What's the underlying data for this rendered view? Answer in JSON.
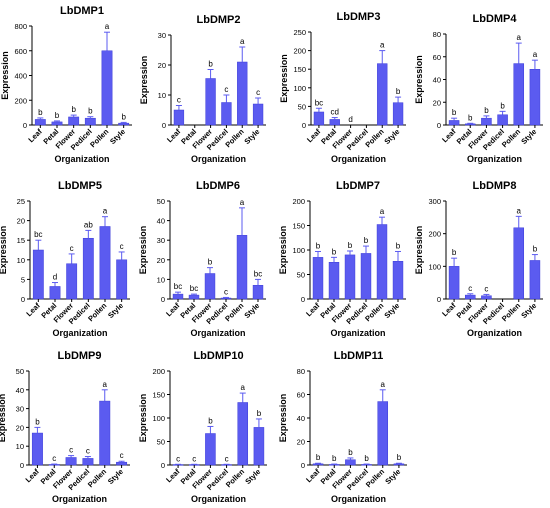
{
  "colors": {
    "bar": "#5b5bf0",
    "bar_stroke": "#3c3cd8",
    "axis": "#000000",
    "text": "#000000"
  },
  "chart_data": [
    {
      "type": "bar",
      "title": "LbDMP1",
      "xlabel": "Organization",
      "ylabel": "Expression",
      "ylim": [
        0,
        800
      ],
      "yticks": [
        0,
        200,
        400,
        600,
        800
      ],
      "categories": [
        "Leaf",
        "Petal",
        "Flower",
        "Pedicel",
        "Pollen",
        "Style"
      ],
      "values": [
        45,
        25,
        65,
        55,
        600,
        15
      ],
      "errors": [
        12,
        8,
        15,
        12,
        150,
        6
      ],
      "labels": [
        "b",
        "b",
        "b",
        "b",
        "a",
        "b"
      ]
    },
    {
      "type": "bar",
      "title": "LbDMP2",
      "xlabel": "Organization",
      "ylabel": "Expression",
      "ylim": [
        0,
        30
      ],
      "yticks": [
        0,
        10,
        20,
        30
      ],
      "categories": [
        "Leaf",
        "Petal",
        "Flower",
        "Pedicel",
        "Pollen",
        "Style"
      ],
      "values": [
        5,
        0,
        15.5,
        7.5,
        21,
        7
      ],
      "errors": [
        1.5,
        0,
        3,
        2.5,
        5,
        2
      ],
      "labels": [
        "c",
        "",
        "b",
        "c",
        "a",
        "c"
      ]
    },
    {
      "type": "bar",
      "title": "LbDMP3",
      "xlabel": "Organization",
      "ylabel": "Expression",
      "ylim": [
        0,
        250
      ],
      "yticks": [
        0,
        50,
        100,
        150,
        200,
        250
      ],
      "categories": [
        "Leaf",
        "Petal",
        "Flower",
        "Pedicel",
        "Pollen",
        "Style"
      ],
      "values": [
        35,
        15,
        0,
        0,
        165,
        60
      ],
      "errors": [
        10,
        5,
        0,
        0,
        35,
        15
      ],
      "labels": [
        "bc",
        "cd",
        "d",
        "",
        "a",
        "b"
      ]
    },
    {
      "type": "bar",
      "title": "LbDMP4",
      "xlabel": "Organization",
      "ylabel": "Expression",
      "ylim": [
        0,
        80
      ],
      "yticks": [
        0,
        20,
        40,
        60,
        80
      ],
      "categories": [
        "Leaf",
        "Petal",
        "Flower",
        "Pedicel",
        "Pollen",
        "Style"
      ],
      "values": [
        4,
        1,
        6,
        9,
        54,
        49
      ],
      "errors": [
        2,
        0.5,
        2,
        3,
        18,
        8
      ],
      "labels": [
        "b",
        "b",
        "b",
        "b",
        "a",
        "a"
      ]
    },
    {
      "type": "bar",
      "title": "LbDMP5",
      "xlabel": "Organization",
      "ylabel": "Expression",
      "ylim": [
        0,
        25
      ],
      "yticks": [
        0,
        5,
        10,
        15,
        20,
        25
      ],
      "categories": [
        "Leaf",
        "Petal",
        "Flower",
        "Pedicel",
        "Pollen",
        "Style"
      ],
      "values": [
        12.5,
        3.2,
        9,
        15.5,
        18.5,
        10
      ],
      "errors": [
        2.5,
        1,
        2.5,
        2,
        2.5,
        2
      ],
      "labels": [
        "bc",
        "d",
        "c",
        "ab",
        "a",
        "c"
      ]
    },
    {
      "type": "bar",
      "title": "LbDMP6",
      "xlabel": "Organization",
      "ylabel": "Expression",
      "ylim": [
        0,
        50
      ],
      "yticks": [
        0,
        10,
        20,
        30,
        40,
        50
      ],
      "categories": [
        "Leaf",
        "Petal",
        "Flower",
        "Pedicel",
        "Pollen",
        "Style"
      ],
      "values": [
        2.5,
        2,
        13,
        0.5,
        32.5,
        7
      ],
      "errors": [
        1,
        0.5,
        3,
        0.3,
        14,
        3
      ],
      "labels": [
        "bc",
        "bc",
        "b",
        "c",
        "a",
        "bc"
      ]
    },
    {
      "type": "bar",
      "title": "LbDMP7",
      "xlabel": "Organization",
      "ylabel": "Expression",
      "ylim": [
        0,
        200
      ],
      "yticks": [
        0,
        50,
        100,
        150,
        200
      ],
      "categories": [
        "Leaf",
        "Petal",
        "Flower",
        "Pedicel",
        "Pollen",
        "Style"
      ],
      "values": [
        85,
        75,
        90,
        93,
        152,
        77
      ],
      "errors": [
        12,
        10,
        8,
        15,
        15,
        20
      ],
      "labels": [
        "b",
        "b",
        "b",
        "b",
        "a",
        "b"
      ]
    },
    {
      "type": "bar",
      "title": "LbDMP8",
      "xlabel": "Organization",
      "ylabel": "Expression",
      "ylim": [
        0,
        300
      ],
      "yticks": [
        0,
        100,
        200,
        300
      ],
      "categories": [
        "Leaf",
        "Petal",
        "Flower",
        "Pedicel",
        "Pollen",
        "Style"
      ],
      "values": [
        100,
        12,
        10,
        0,
        218,
        118
      ],
      "errors": [
        25,
        4,
        4,
        0,
        35,
        18
      ],
      "labels": [
        "b",
        "c",
        "c",
        "",
        "a",
        "b"
      ]
    },
    {
      "type": "bar",
      "title": "LbDMP9",
      "xlabel": "Organization",
      "ylabel": "Expression",
      "ylim": [
        0,
        50
      ],
      "yticks": [
        0,
        10,
        20,
        30,
        40,
        50
      ],
      "categories": [
        "Leaf",
        "Petal",
        "Flower",
        "Pedicel",
        "Pollen",
        "Style"
      ],
      "values": [
        17,
        0.3,
        4,
        3.5,
        34,
        1.5
      ],
      "errors": [
        3,
        0.2,
        1,
        1,
        6,
        0.5
      ],
      "labels": [
        "b",
        "c",
        "c",
        "c",
        "a",
        "c"
      ]
    },
    {
      "type": "bar",
      "title": "LbDMP10",
      "xlabel": "Organization",
      "ylabel": "Expression",
      "ylim": [
        0,
        200
      ],
      "yticks": [
        0,
        50,
        100,
        150,
        200
      ],
      "categories": [
        "Leaf",
        "Petal",
        "Flower",
        "Pedicel",
        "Pollen",
        "Style"
      ],
      "values": [
        1,
        1,
        67,
        1,
        133,
        80
      ],
      "errors": [
        0.5,
        0.5,
        15,
        0.5,
        20,
        18
      ],
      "labels": [
        "c",
        "c",
        "b",
        "c",
        "a",
        "b"
      ]
    },
    {
      "type": "bar",
      "title": "LbDMP11",
      "xlabel": "Organization",
      "ylabel": "Expression",
      "ylim": [
        0,
        80
      ],
      "yticks": [
        0,
        20,
        40,
        60,
        80
      ],
      "categories": [
        "Leaf",
        "Petal",
        "Flower",
        "Pedicel",
        "Pollen",
        "Style"
      ],
      "values": [
        1,
        0.5,
        4.5,
        0.5,
        54,
        1
      ],
      "errors": [
        0.5,
        0.3,
        1.5,
        0.3,
        10,
        0.5
      ],
      "labels": [
        "b",
        "b",
        "b",
        "b",
        "a",
        "b"
      ]
    }
  ]
}
